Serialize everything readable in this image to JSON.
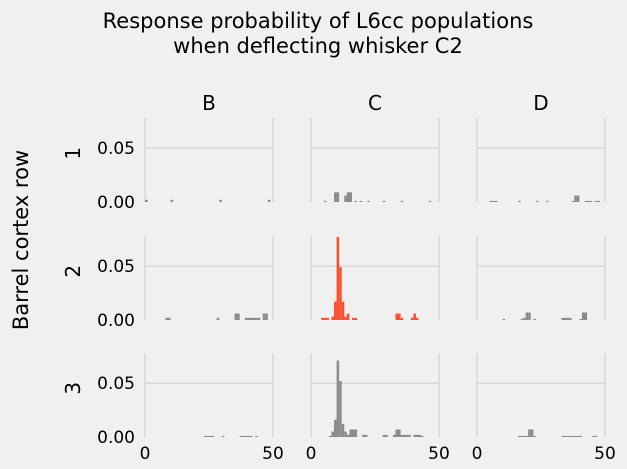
{
  "title_lines": [
    "Response probability of L6cc populations",
    "when deflecting whisker C2"
  ],
  "row_axis_label": "Barrel cortex row",
  "colors": {
    "background": "#f0f0f0",
    "grid": "#cbcbcb",
    "bar": "#8b8b8b",
    "highlight": "#fc4f30",
    "text": "#000000"
  },
  "chart_data": {
    "type": "bar",
    "title": "Response probability of L6cc populations when deflecting whisker C2",
    "ylabel": "Barrel cortex row",
    "columns": [
      "B",
      "C",
      "D"
    ],
    "rows": [
      "1",
      "2",
      "3"
    ],
    "xlim": [
      0,
      50
    ],
    "ylim": [
      0,
      0.078
    ],
    "xticks": [
      "0",
      "50"
    ],
    "yticks": [
      "0.00",
      "0.05"
    ],
    "highlight_panel": "C2",
    "panels": [
      {
        "id": "B1",
        "bars": [
          [
            0,
            0.002
          ],
          [
            10,
            0.002
          ],
          [
            29,
            0.002
          ],
          [
            48,
            0.002
          ]
        ]
      },
      {
        "id": "C1",
        "bars": [
          [
            5,
            0.001
          ],
          [
            9,
            0.009
          ],
          [
            10,
            0.009
          ],
          [
            13,
            0.006
          ],
          [
            14,
            0.009
          ],
          [
            15,
            0.009
          ],
          [
            17,
            0.001
          ],
          [
            19,
            0.001
          ],
          [
            22,
            0.001
          ],
          [
            28,
            0.001
          ],
          [
            35,
            0.001
          ],
          [
            46,
            0.001
          ]
        ]
      },
      {
        "id": "D1",
        "bars": [
          [
            5,
            0.001
          ],
          [
            6,
            0.001
          ],
          [
            7,
            0.001
          ],
          [
            16,
            0.001
          ],
          [
            23,
            0.001
          ],
          [
            27,
            0.001
          ],
          [
            37,
            0.001
          ],
          [
            38,
            0.006
          ],
          [
            39,
            0.006
          ],
          [
            42,
            0.001
          ],
          [
            43,
            0.001
          ],
          [
            44,
            0.001
          ],
          [
            46,
            0.001
          ],
          [
            47,
            0.001
          ]
        ]
      },
      {
        "id": "B2",
        "bars": [
          [
            8,
            0.002
          ],
          [
            9,
            0.002
          ],
          [
            28,
            0.002
          ],
          [
            35,
            0.006
          ],
          [
            36,
            0.006
          ],
          [
            39,
            0.002
          ],
          [
            40,
            0.002
          ],
          [
            41,
            0.002
          ],
          [
            42,
            0.002
          ],
          [
            43,
            0.002
          ],
          [
            44,
            0.002
          ],
          [
            46,
            0.006
          ],
          [
            47,
            0.006
          ]
        ]
      },
      {
        "id": "C2",
        "bars": [
          [
            4,
            0.002
          ],
          [
            5,
            0.002
          ],
          [
            6,
            0.002
          ],
          [
            8,
            0.003
          ],
          [
            9,
            0.017
          ],
          [
            10,
            0.077
          ],
          [
            11,
            0.049
          ],
          [
            12,
            0.017
          ],
          [
            13,
            0.003
          ],
          [
            14,
            0.006
          ],
          [
            16,
            0.002
          ],
          [
            17,
            0.002
          ],
          [
            33,
            0.006
          ],
          [
            34,
            0.006
          ],
          [
            35,
            0.002
          ],
          [
            39,
            0.002
          ],
          [
            40,
            0.006
          ],
          [
            41,
            0.002
          ]
        ]
      },
      {
        "id": "D2",
        "bars": [
          [
            10,
            0.001
          ],
          [
            17,
            0.001
          ],
          [
            18,
            0.002
          ],
          [
            19,
            0.007
          ],
          [
            20,
            0.007
          ],
          [
            22,
            0.001
          ],
          [
            33,
            0.002
          ],
          [
            34,
            0.002
          ],
          [
            35,
            0.002
          ],
          [
            36,
            0.002
          ],
          [
            40,
            0.001
          ],
          [
            41,
            0.007
          ],
          [
            42,
            0.007
          ]
        ]
      },
      {
        "id": "B3",
        "bars": [
          [
            23,
            0.001
          ],
          [
            24,
            0.001
          ],
          [
            25,
            0.001
          ],
          [
            26,
            0.001
          ],
          [
            30,
            0.001
          ],
          [
            37,
            0.001
          ],
          [
            38,
            0.001
          ],
          [
            39,
            0.001
          ],
          [
            40,
            0.001
          ],
          [
            41,
            0.001
          ],
          [
            43,
            0.001
          ]
        ]
      },
      {
        "id": "C3",
        "bars": [
          [
            7,
            0.001
          ],
          [
            8,
            0.005
          ],
          [
            9,
            0.016
          ],
          [
            10,
            0.071
          ],
          [
            11,
            0.052
          ],
          [
            12,
            0.012
          ],
          [
            13,
            0.005
          ],
          [
            14,
            0.002
          ],
          [
            15,
            0.007
          ],
          [
            16,
            0.007
          ],
          [
            17,
            0.007
          ],
          [
            20,
            0.002
          ],
          [
            21,
            0.002
          ],
          [
            28,
            0.002
          ],
          [
            29,
            0.002
          ],
          [
            32,
            0.002
          ],
          [
            33,
            0.007
          ],
          [
            34,
            0.007
          ],
          [
            35,
            0.002
          ],
          [
            36,
            0.002
          ],
          [
            37,
            0.002
          ],
          [
            38,
            0.002
          ],
          [
            40,
            0.002
          ],
          [
            41,
            0.002
          ],
          [
            42,
            0.002
          ],
          [
            43,
            0.001
          ]
        ]
      },
      {
        "id": "D3",
        "bars": [
          [
            16,
            0.001
          ],
          [
            17,
            0.001
          ],
          [
            18,
            0.001
          ],
          [
            19,
            0.001
          ],
          [
            20,
            0.007
          ],
          [
            21,
            0.007
          ],
          [
            22,
            0.001
          ],
          [
            33,
            0.001
          ],
          [
            34,
            0.001
          ],
          [
            35,
            0.001
          ],
          [
            36,
            0.001
          ],
          [
            37,
            0.001
          ],
          [
            38,
            0.001
          ],
          [
            39,
            0.001
          ],
          [
            40,
            0.001
          ],
          [
            45,
            0.001
          ],
          [
            46,
            0.001
          ]
        ]
      }
    ]
  }
}
